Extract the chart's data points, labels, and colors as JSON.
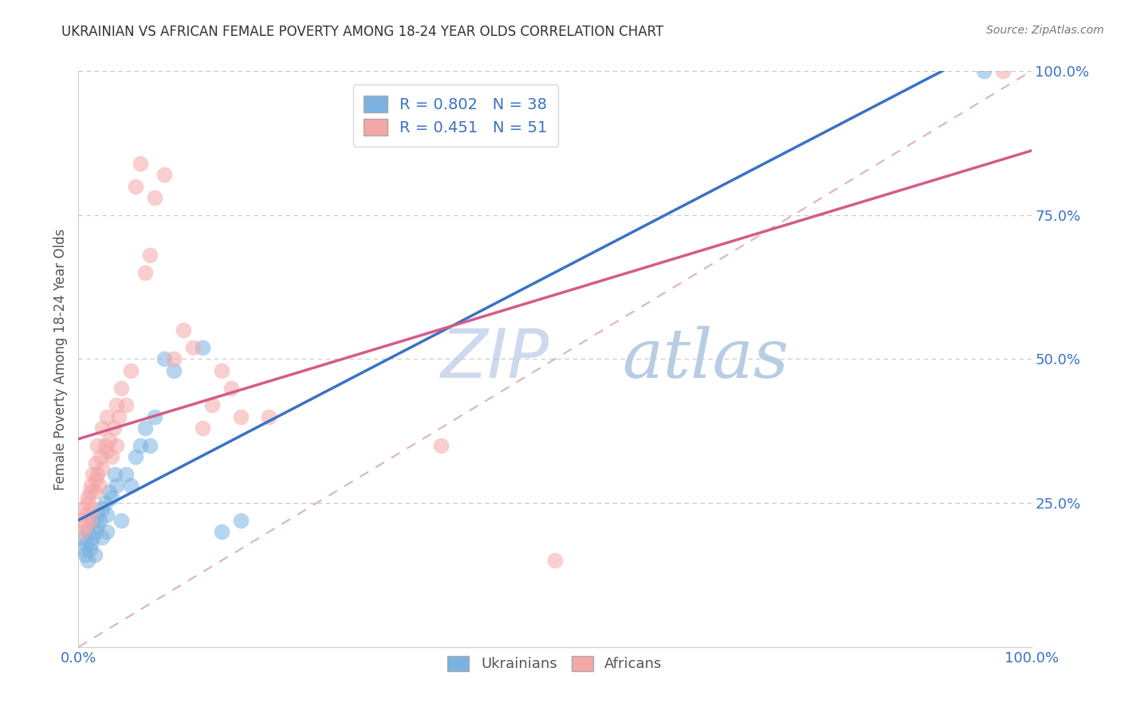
{
  "title": "UKRAINIAN VS AFRICAN FEMALE POVERTY AMONG 18-24 YEAR OLDS CORRELATION CHART",
  "source": "Source: ZipAtlas.com",
  "ylabel": "Female Poverty Among 18-24 Year Olds",
  "xlim": [
    0,
    1
  ],
  "ylim": [
    0,
    1
  ],
  "r_ukrainian": 0.802,
  "n_ukrainian": 38,
  "r_african": 0.451,
  "n_african": 51,
  "color_ukrainian": "#7ab3e0",
  "color_african": "#f4a7a7",
  "color_ukr_line": "#3a72c4",
  "color_afr_line": "#d45b8a",
  "color_diag_line": "#d4a0b0",
  "watermark_zip": "ZIP",
  "watermark_atlas": "atlas",
  "watermark_color": "#ccd9ee",
  "grid_color": "#c8c8c8",
  "title_color": "#333333",
  "tick_color": "#3a72c4",
  "ylabel_color": "#555555",
  "ukr_scatter": [
    [
      0.005,
      0.17
    ],
    [
      0.005,
      0.19
    ],
    [
      0.007,
      0.16
    ],
    [
      0.008,
      0.18
    ],
    [
      0.01,
      0.15
    ],
    [
      0.01,
      0.2
    ],
    [
      0.012,
      0.17
    ],
    [
      0.013,
      0.18
    ],
    [
      0.015,
      0.19
    ],
    [
      0.015,
      0.22
    ],
    [
      0.017,
      0.16
    ],
    [
      0.018,
      0.2
    ],
    [
      0.02,
      0.21
    ],
    [
      0.02,
      0.23
    ],
    [
      0.022,
      0.22
    ],
    [
      0.025,
      0.24
    ],
    [
      0.025,
      0.19
    ],
    [
      0.028,
      0.25
    ],
    [
      0.03,
      0.2
    ],
    [
      0.03,
      0.23
    ],
    [
      0.032,
      0.27
    ],
    [
      0.035,
      0.26
    ],
    [
      0.038,
      0.3
    ],
    [
      0.04,
      0.28
    ],
    [
      0.045,
      0.22
    ],
    [
      0.05,
      0.3
    ],
    [
      0.055,
      0.28
    ],
    [
      0.06,
      0.33
    ],
    [
      0.065,
      0.35
    ],
    [
      0.07,
      0.38
    ],
    [
      0.075,
      0.35
    ],
    [
      0.08,
      0.4
    ],
    [
      0.09,
      0.5
    ],
    [
      0.1,
      0.48
    ],
    [
      0.13,
      0.52
    ],
    [
      0.15,
      0.2
    ],
    [
      0.17,
      0.22
    ],
    [
      0.95,
      1.0
    ]
  ],
  "afr_scatter": [
    [
      0.005,
      0.2
    ],
    [
      0.005,
      0.22
    ],
    [
      0.005,
      0.24
    ],
    [
      0.007,
      0.21
    ],
    [
      0.008,
      0.23
    ],
    [
      0.01,
      0.25
    ],
    [
      0.01,
      0.26
    ],
    [
      0.012,
      0.22
    ],
    [
      0.012,
      0.27
    ],
    [
      0.013,
      0.28
    ],
    [
      0.015,
      0.24
    ],
    [
      0.015,
      0.3
    ],
    [
      0.017,
      0.27
    ],
    [
      0.018,
      0.29
    ],
    [
      0.018,
      0.32
    ],
    [
      0.02,
      0.3
    ],
    [
      0.02,
      0.35
    ],
    [
      0.022,
      0.28
    ],
    [
      0.023,
      0.33
    ],
    [
      0.025,
      0.31
    ],
    [
      0.025,
      0.38
    ],
    [
      0.028,
      0.35
    ],
    [
      0.03,
      0.4
    ],
    [
      0.03,
      0.34
    ],
    [
      0.032,
      0.36
    ],
    [
      0.035,
      0.33
    ],
    [
      0.037,
      0.38
    ],
    [
      0.04,
      0.42
    ],
    [
      0.04,
      0.35
    ],
    [
      0.042,
      0.4
    ],
    [
      0.045,
      0.45
    ],
    [
      0.05,
      0.42
    ],
    [
      0.055,
      0.48
    ],
    [
      0.06,
      0.8
    ],
    [
      0.065,
      0.84
    ],
    [
      0.07,
      0.65
    ],
    [
      0.075,
      0.68
    ],
    [
      0.08,
      0.78
    ],
    [
      0.09,
      0.82
    ],
    [
      0.1,
      0.5
    ],
    [
      0.11,
      0.55
    ],
    [
      0.12,
      0.52
    ],
    [
      0.13,
      0.38
    ],
    [
      0.14,
      0.42
    ],
    [
      0.15,
      0.48
    ],
    [
      0.16,
      0.45
    ],
    [
      0.17,
      0.4
    ],
    [
      0.2,
      0.4
    ],
    [
      0.38,
      0.35
    ],
    [
      0.5,
      0.15
    ],
    [
      0.97,
      1.0
    ]
  ]
}
